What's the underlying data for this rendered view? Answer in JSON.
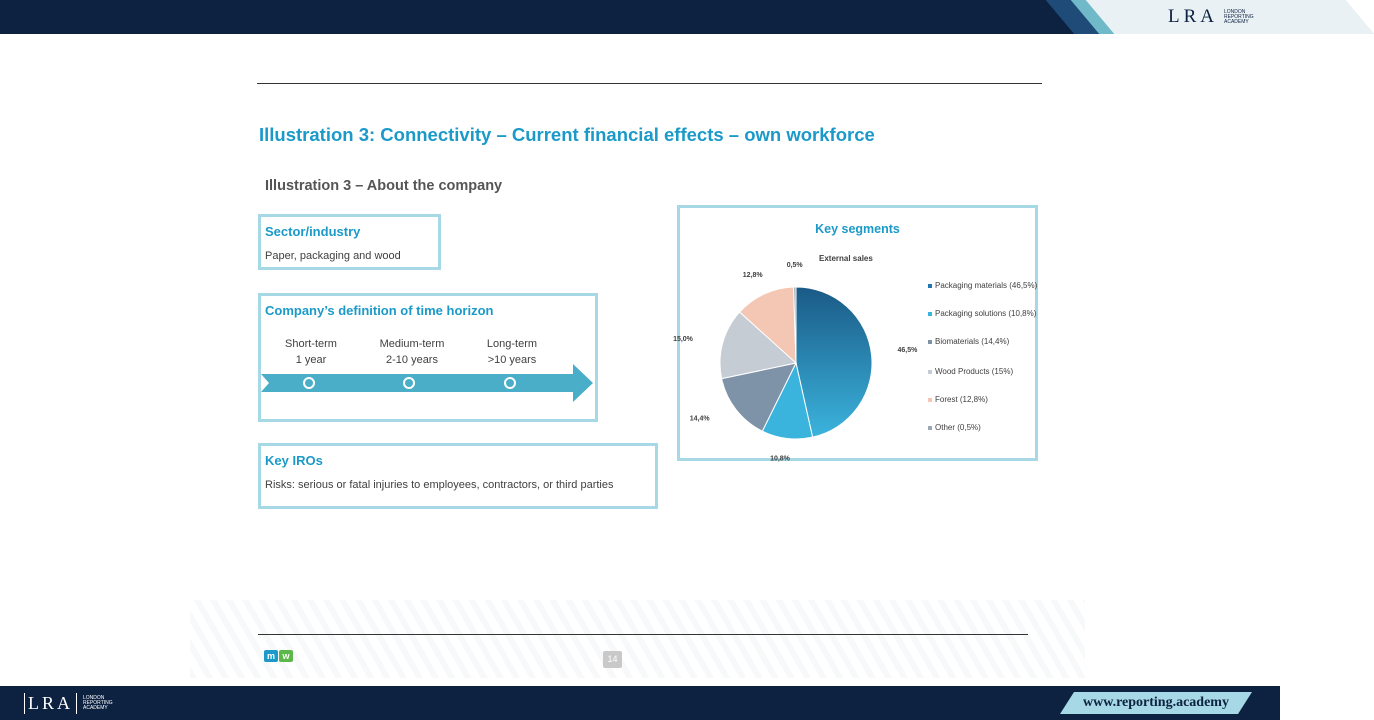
{
  "header": {
    "logo_text": "LRA",
    "logo_subtext": "LONDON REPORTING ACADEMY"
  },
  "slide": {
    "title": "Illustration 3: Connectivity – Current financial effects – own workforce",
    "subtitle": "Illustration 3 – About the company",
    "sector": {
      "heading": "Sector/industry",
      "body": "Paper, packaging and wood"
    },
    "horizon": {
      "heading": "Company’s definition of time horizon",
      "terms": [
        {
          "label": "Short-term",
          "value": "1 year"
        },
        {
          "label": "Medium-term",
          "value": "2-10 years"
        },
        {
          "label": "Long-term",
          "value": ">10 years"
        }
      ]
    },
    "iro": {
      "heading": "Key IROs",
      "body": "Risks: serious or fatal injuries to employees, contractors, or third parties"
    },
    "segments": {
      "heading": "Key segments"
    },
    "page_number": "14"
  },
  "chart_data": {
    "type": "pie",
    "title": "External sales",
    "labels": [
      "Packaging materials",
      "Packaging solutions",
      "Biomaterials",
      "Wood Products",
      "Forest",
      "Other"
    ],
    "values": [
      46.5,
      10.8,
      14.4,
      15.0,
      12.8,
      0.5
    ],
    "data_labels": [
      "46,5%",
      "10,8%",
      "14,4%",
      "15,0%",
      "12,8%",
      "0,5%"
    ],
    "legend": [
      "Packaging materials (46,5%)",
      "Packaging solutions (10,8%)",
      "Biomaterials (14,4%)",
      "Wood Products (15%)",
      "Forest (12,8%)",
      "Other (0,5%)"
    ],
    "colors": [
      "#1f78b4",
      "#3bb4dd",
      "#7f93a8",
      "#c5ccd4",
      "#f4c7b4",
      "#9aa8b6"
    ],
    "legend_position": "right"
  },
  "footer": {
    "brand_logo": "mw",
    "logo_text": "LRA",
    "logo_subtext": "LONDON REPORTING ACADEMY",
    "url": "www.reporting.academy"
  },
  "colors": {
    "navy": "#0d2240",
    "accent": "#1b9ac9",
    "box_border": "#a6d8e5",
    "arrow": "#4aaec8"
  }
}
